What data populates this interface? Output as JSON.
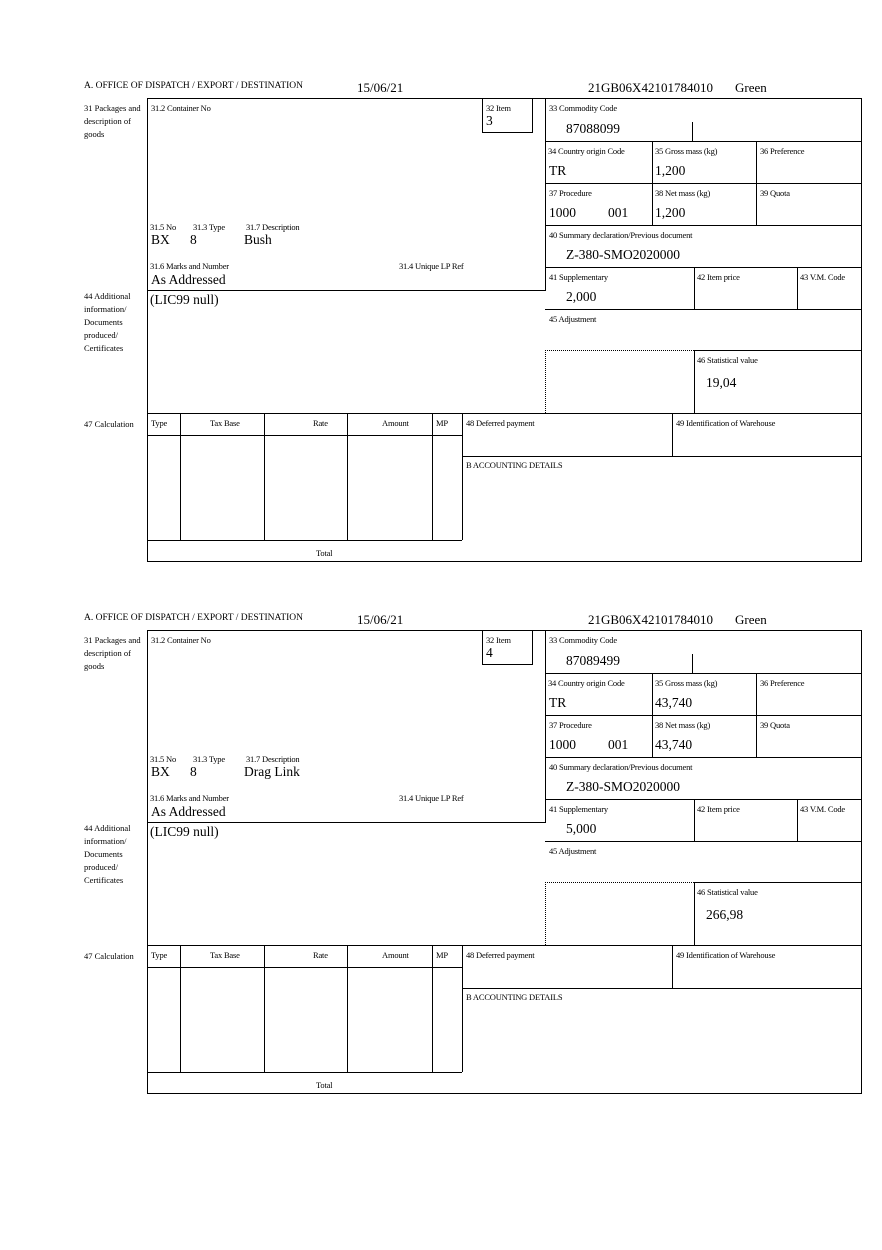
{
  "labels": {
    "office": "A. OFFICE OF DISPATCH / EXPORT / DESTINATION",
    "packages": "31 Packages and description of goods",
    "container": "31.2 Container No",
    "item": "32 Item",
    "commodity": "33 Commodity Code",
    "country": "34 Country origin Code",
    "gross": "35 Gross mass (kg)",
    "preference": "36 Preference",
    "procedure": "37 Procedure",
    "net": "38 Net mass (kg)",
    "quota": "39 Quota",
    "summary": "40 Summary declaration/Previous document",
    "supplementary": "41 Supplementary",
    "item_price": "42 Item price",
    "vm_code": "43 V.M. Code",
    "adjustment": "45 Adjustment",
    "stat_value": "46 Statistical value",
    "no": "31.5 No",
    "type": "31.3 Type",
    "description": "31.7 Description",
    "marks": "31.6 Marks and Number",
    "unique_lp": "31.4 Unique LP Ref",
    "additional": "44 Additional information/ Documents produced/ Certificates",
    "calculation": "47 Calculation",
    "calc_type": "Type",
    "tax_base": "Tax Base",
    "rate": "Rate",
    "amount": "Amount",
    "mp": "MP",
    "deferred": "48 Deferred payment",
    "warehouse": "49 Identification of Warehouse",
    "accounting": "B ACCOUNTING DETAILS",
    "total": "Total"
  },
  "forms": [
    {
      "date": "15/06/21",
      "reference": "21GB06X42101784010",
      "route": "Green",
      "item": "3",
      "commodity_code": "87088099",
      "country": "TR",
      "gross_mass": "1,200",
      "procedure": "1000",
      "procedure_add": "001",
      "net_mass": "1,200",
      "summary_doc": "Z-380-SMO2020000",
      "supplementary": "2,000",
      "stat_value": "19,04",
      "pkg_no": "BX",
      "pkg_type": "8",
      "description": "Bush",
      "marks": "As Addressed",
      "additional_info": "(LIC99 null)"
    },
    {
      "date": "15/06/21",
      "reference": "21GB06X42101784010",
      "route": "Green",
      "item": "4",
      "commodity_code": "87089499",
      "country": "TR",
      "gross_mass": "43,740",
      "procedure": "1000",
      "procedure_add": "001",
      "net_mass": "43,740",
      "summary_doc": "Z-380-SMO2020000",
      "supplementary": "5,000",
      "stat_value": "266,98",
      "pkg_no": "BX",
      "pkg_type": "8",
      "description": "Drag Link",
      "marks": "As Addressed",
      "additional_info": "(LIC99 null)"
    }
  ]
}
